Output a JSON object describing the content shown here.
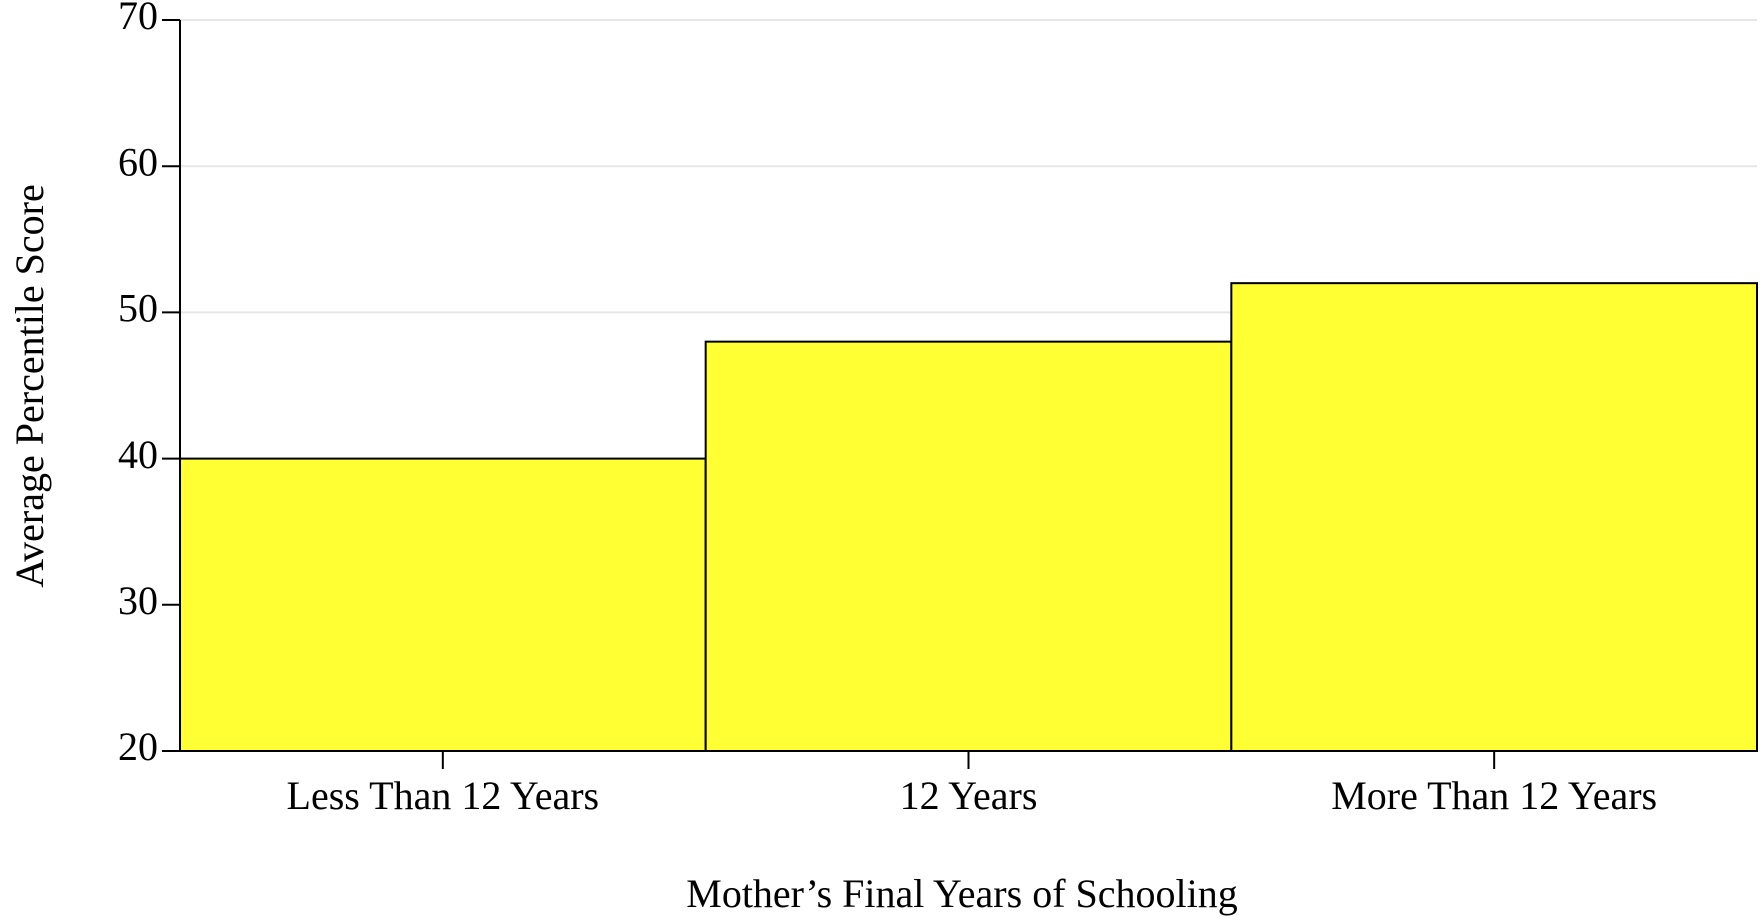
{
  "chart_data": {
    "type": "bar",
    "x_label": "Mother’s Final Years of Schooling",
    "y_label": "Average Percentile Score",
    "categories": [
      "Less Than 12 Years",
      "12 Years",
      "More Than 12 Years"
    ],
    "values": [
      40,
      48,
      52
    ],
    "color": "#ffff33",
    "ylim": [
      20,
      70
    ],
    "yticks": [
      20,
      30,
      40,
      50,
      60,
      70
    ],
    "grid": true
  }
}
